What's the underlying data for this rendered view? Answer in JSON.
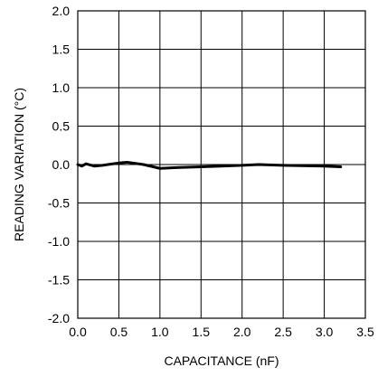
{
  "chart_data": {
    "type": "line",
    "title": "",
    "xlabel": "CAPACITANCE (nF)",
    "ylabel": "READING VARIATION (°C)",
    "xlim": [
      0.0,
      3.5
    ],
    "ylim": [
      -2.0,
      2.0
    ],
    "x_ticks": [
      0.0,
      0.5,
      1.0,
      1.5,
      2.0,
      2.5,
      3.0,
      3.5
    ],
    "x_tick_labels": [
      "0.0",
      "0.5",
      "1.0",
      "1.5",
      "2.0",
      "2.5",
      "3.0",
      "3.5"
    ],
    "y_ticks": [
      2.0,
      1.5,
      1.0,
      0.5,
      0.0,
      -0.5,
      -1.0,
      -1.5,
      -2.0
    ],
    "y_tick_labels": [
      "2.0",
      "1.5",
      "1.0",
      "0.5",
      "0.0",
      "-0.5",
      "-1.0",
      "-1.5",
      "-2.0"
    ],
    "grid": true,
    "series": [
      {
        "x": [
          0.0,
          0.05,
          0.1,
          0.2,
          0.3,
          0.5,
          0.6,
          0.8,
          1.0,
          1.2,
          1.5,
          2.0,
          2.2,
          2.5,
          3.0,
          3.2
        ],
        "y": [
          0.0,
          -0.02,
          0.01,
          -0.02,
          -0.01,
          0.02,
          0.03,
          0.0,
          -0.05,
          -0.04,
          -0.03,
          -0.01,
          0.0,
          -0.01,
          -0.02,
          -0.03
        ]
      }
    ]
  }
}
